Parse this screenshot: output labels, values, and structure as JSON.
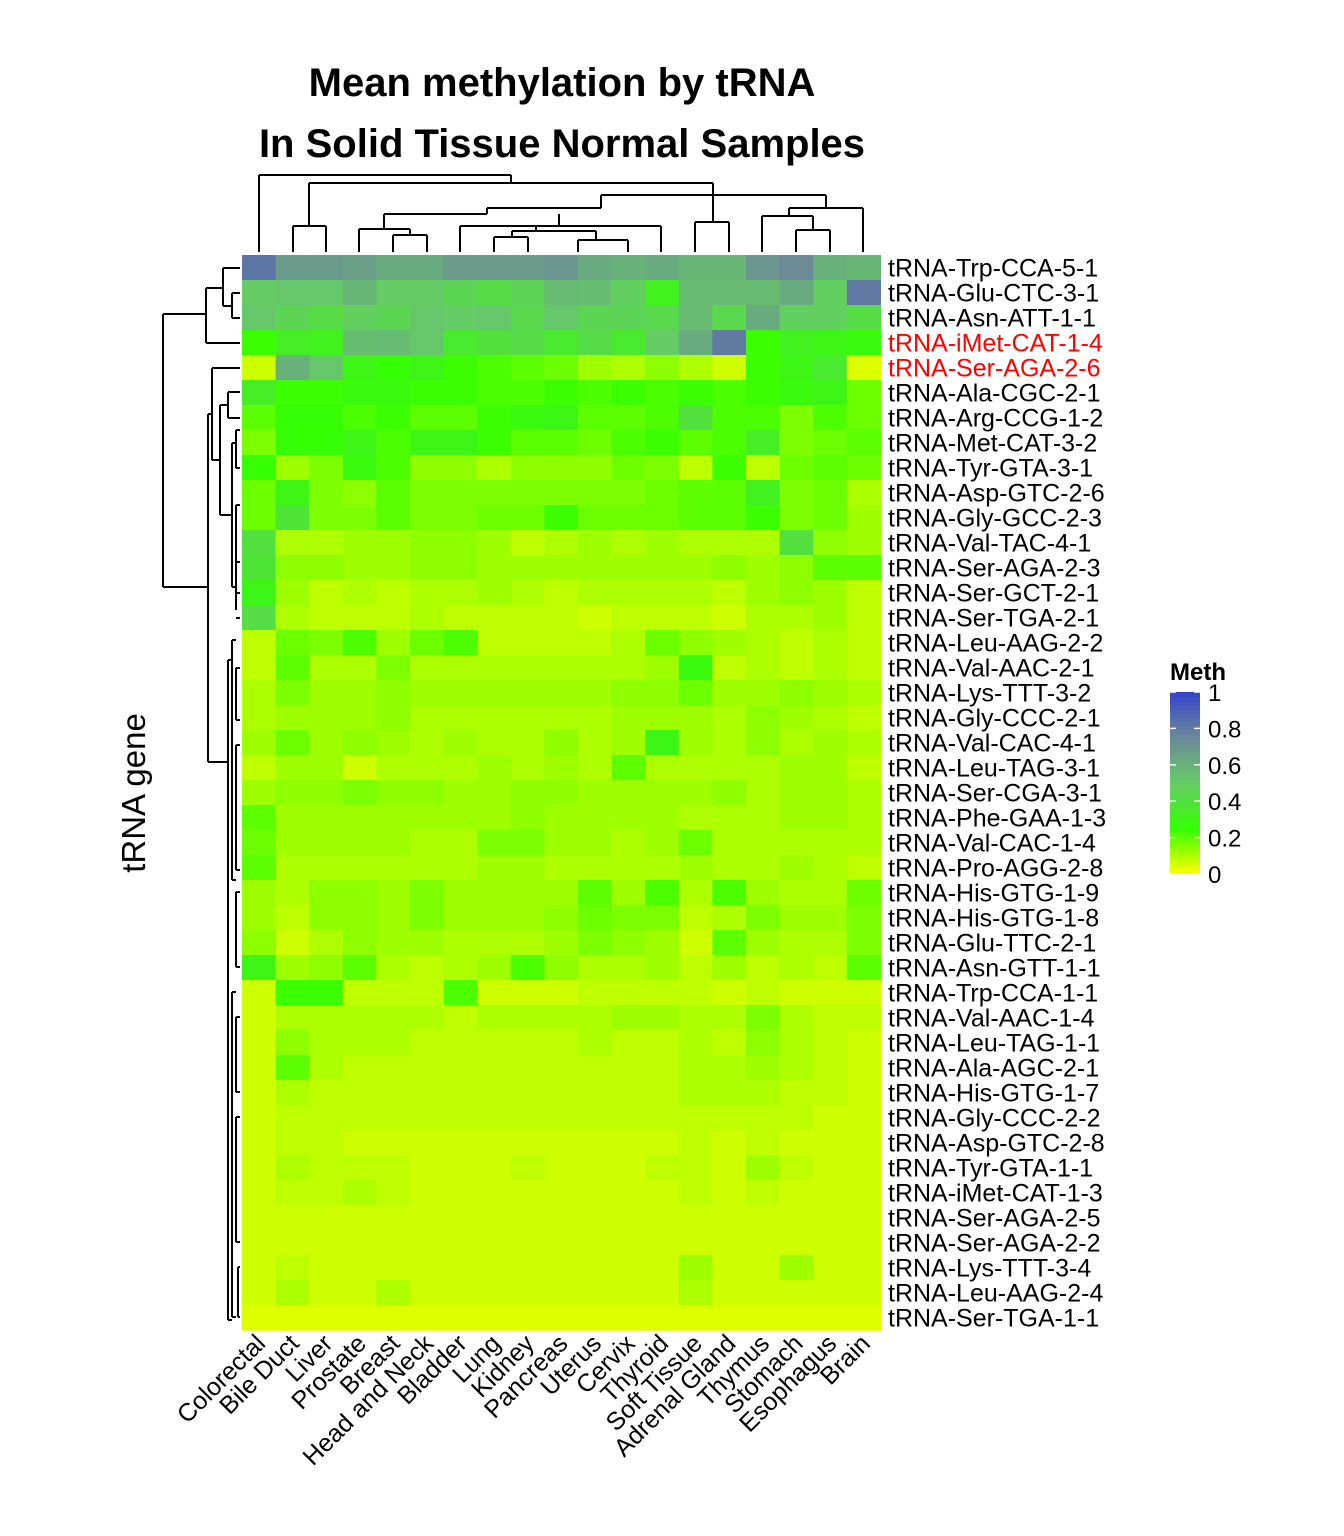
{
  "chart_data": {
    "type": "heatmap",
    "title": [
      "Mean methylation by tRNA",
      "In Solid Tissue Normal Samples"
    ],
    "ylabel": "tRNA gene",
    "columns": [
      "Colorectal",
      "Bile Duct",
      "Liver",
      "Prostate",
      "Breast",
      "Head and Neck",
      "Bladder",
      "Lung",
      "Kidney",
      "Pancreas",
      "Uterus",
      "Cervix",
      "Thyroid",
      "Soft Tissue",
      "Adrenal Gland",
      "Thymus",
      "Stomach",
      "Esophagus",
      "Brain"
    ],
    "rows": [
      "tRNA-Trp-CCA-5-1",
      "tRNA-Glu-CTC-3-1",
      "tRNA-Asn-ATT-1-1",
      "tRNA-iMet-CAT-1-4",
      "tRNA-Ser-AGA-2-6",
      "tRNA-Ala-CGC-2-1",
      "tRNA-Arg-CCG-1-2",
      "tRNA-Met-CAT-3-2",
      "tRNA-Tyr-GTA-3-1",
      "tRNA-Asp-GTC-2-6",
      "tRNA-Gly-GCC-2-3",
      "tRNA-Val-TAC-4-1",
      "tRNA-Ser-AGA-2-3",
      "tRNA-Ser-GCT-2-1",
      "tRNA-Ser-TGA-2-1",
      "tRNA-Leu-AAG-2-2",
      "tRNA-Val-AAC-2-1",
      "tRNA-Lys-TTT-3-2",
      "tRNA-Gly-CCC-2-1",
      "tRNA-Val-CAC-4-1",
      "tRNA-Leu-TAG-3-1",
      "tRNA-Ser-CGA-3-1",
      "tRNA-Phe-GAA-1-3",
      "tRNA-Val-CAC-1-4",
      "tRNA-Pro-AGG-2-8",
      "tRNA-His-GTG-1-9",
      "tRNA-His-GTG-1-8",
      "tRNA-Glu-TTC-2-1",
      "tRNA-Asn-GTT-1-1",
      "tRNA-Trp-CCA-1-1",
      "tRNA-Val-AAC-1-4",
      "tRNA-Leu-TAG-1-1",
      "tRNA-Ala-AGC-2-1",
      "tRNA-His-GTG-1-7",
      "tRNA-Gly-CCC-2-2",
      "tRNA-Asp-GTC-2-8",
      "tRNA-Tyr-GTA-1-1",
      "tRNA-iMet-CAT-1-3",
      "tRNA-Ser-AGA-2-5",
      "tRNA-Ser-AGA-2-2",
      "tRNA-Lys-TTT-3-4",
      "tRNA-Leu-AAG-2-4",
      "tRNA-Ser-TGA-1-1"
    ],
    "highlighted_rows": [
      "tRNA-iMet-CAT-1-4",
      "tRNA-Ser-AGA-2-6"
    ],
    "highlight_color": "#ff0000",
    "values": [
      [
        0.82,
        0.68,
        0.68,
        0.66,
        0.62,
        0.62,
        0.68,
        0.68,
        0.68,
        0.7,
        0.62,
        0.6,
        0.62,
        0.58,
        0.58,
        0.7,
        0.74,
        0.6,
        0.58
      ],
      [
        0.5,
        0.52,
        0.52,
        0.58,
        0.5,
        0.5,
        0.45,
        0.42,
        0.46,
        0.56,
        0.55,
        0.48,
        0.32,
        0.56,
        0.56,
        0.56,
        0.62,
        0.48,
        0.8
      ],
      [
        0.52,
        0.45,
        0.42,
        0.48,
        0.45,
        0.52,
        0.5,
        0.52,
        0.44,
        0.52,
        0.45,
        0.46,
        0.44,
        0.56,
        0.44,
        0.62,
        0.48,
        0.48,
        0.42
      ],
      [
        0.24,
        0.34,
        0.32,
        0.55,
        0.56,
        0.52,
        0.36,
        0.4,
        0.42,
        0.36,
        0.42,
        0.36,
        0.5,
        0.62,
        0.8,
        0.24,
        0.32,
        0.3,
        0.28
      ],
      [
        0.06,
        0.6,
        0.52,
        0.3,
        0.26,
        0.3,
        0.24,
        0.22,
        0.2,
        0.18,
        0.12,
        0.1,
        0.14,
        0.1,
        0.06,
        0.24,
        0.3,
        0.36,
        0.04
      ],
      [
        0.34,
        0.24,
        0.24,
        0.28,
        0.28,
        0.24,
        0.24,
        0.22,
        0.22,
        0.24,
        0.22,
        0.24,
        0.22,
        0.24,
        0.22,
        0.24,
        0.28,
        0.3,
        0.18
      ],
      [
        0.2,
        0.26,
        0.26,
        0.22,
        0.24,
        0.2,
        0.2,
        0.24,
        0.28,
        0.3,
        0.2,
        0.2,
        0.22,
        0.4,
        0.22,
        0.22,
        0.16,
        0.22,
        0.18
      ],
      [
        0.16,
        0.26,
        0.26,
        0.3,
        0.22,
        0.3,
        0.3,
        0.24,
        0.2,
        0.2,
        0.18,
        0.22,
        0.24,
        0.2,
        0.22,
        0.34,
        0.16,
        0.18,
        0.2
      ],
      [
        0.26,
        0.12,
        0.16,
        0.28,
        0.22,
        0.14,
        0.14,
        0.1,
        0.14,
        0.14,
        0.14,
        0.18,
        0.16,
        0.08,
        0.24,
        0.08,
        0.18,
        0.2,
        0.18
      ],
      [
        0.18,
        0.3,
        0.16,
        0.14,
        0.2,
        0.16,
        0.16,
        0.16,
        0.16,
        0.16,
        0.16,
        0.16,
        0.18,
        0.2,
        0.2,
        0.32,
        0.16,
        0.18,
        0.1
      ],
      [
        0.18,
        0.38,
        0.16,
        0.16,
        0.2,
        0.16,
        0.16,
        0.18,
        0.18,
        0.24,
        0.18,
        0.18,
        0.18,
        0.2,
        0.2,
        0.24,
        0.16,
        0.18,
        0.12
      ],
      [
        0.4,
        0.1,
        0.1,
        0.12,
        0.12,
        0.14,
        0.14,
        0.12,
        0.08,
        0.1,
        0.12,
        0.1,
        0.12,
        0.1,
        0.1,
        0.1,
        0.4,
        0.14,
        0.12
      ],
      [
        0.38,
        0.14,
        0.14,
        0.12,
        0.12,
        0.14,
        0.14,
        0.12,
        0.12,
        0.12,
        0.12,
        0.12,
        0.12,
        0.12,
        0.14,
        0.12,
        0.14,
        0.2,
        0.2
      ],
      [
        0.3,
        0.12,
        0.08,
        0.1,
        0.08,
        0.1,
        0.1,
        0.12,
        0.1,
        0.08,
        0.1,
        0.1,
        0.1,
        0.1,
        0.08,
        0.12,
        0.14,
        0.12,
        0.08
      ],
      [
        0.42,
        0.1,
        0.08,
        0.08,
        0.08,
        0.1,
        0.08,
        0.08,
        0.08,
        0.08,
        0.06,
        0.08,
        0.08,
        0.08,
        0.06,
        0.1,
        0.1,
        0.12,
        0.08
      ],
      [
        0.08,
        0.18,
        0.16,
        0.22,
        0.12,
        0.18,
        0.22,
        0.08,
        0.08,
        0.08,
        0.08,
        0.1,
        0.18,
        0.14,
        0.12,
        0.1,
        0.08,
        0.1,
        0.08
      ],
      [
        0.08,
        0.2,
        0.1,
        0.1,
        0.16,
        0.1,
        0.1,
        0.1,
        0.1,
        0.1,
        0.1,
        0.1,
        0.12,
        0.28,
        0.08,
        0.1,
        0.08,
        0.1,
        0.08
      ],
      [
        0.1,
        0.16,
        0.12,
        0.12,
        0.14,
        0.12,
        0.12,
        0.12,
        0.12,
        0.12,
        0.12,
        0.14,
        0.14,
        0.18,
        0.12,
        0.12,
        0.14,
        0.12,
        0.1
      ],
      [
        0.1,
        0.12,
        0.12,
        0.12,
        0.14,
        0.1,
        0.1,
        0.1,
        0.1,
        0.1,
        0.1,
        0.12,
        0.12,
        0.12,
        0.1,
        0.14,
        0.12,
        0.1,
        0.08
      ],
      [
        0.12,
        0.18,
        0.12,
        0.14,
        0.12,
        0.1,
        0.12,
        0.1,
        0.1,
        0.14,
        0.1,
        0.12,
        0.3,
        0.12,
        0.1,
        0.14,
        0.1,
        0.12,
        0.1
      ],
      [
        0.08,
        0.12,
        0.12,
        0.06,
        0.1,
        0.1,
        0.1,
        0.12,
        0.1,
        0.12,
        0.1,
        0.2,
        0.1,
        0.1,
        0.1,
        0.1,
        0.12,
        0.12,
        0.08
      ],
      [
        0.12,
        0.14,
        0.14,
        0.16,
        0.14,
        0.14,
        0.12,
        0.12,
        0.14,
        0.14,
        0.12,
        0.12,
        0.12,
        0.12,
        0.14,
        0.1,
        0.12,
        0.12,
        0.1
      ],
      [
        0.2,
        0.12,
        0.12,
        0.12,
        0.12,
        0.12,
        0.12,
        0.12,
        0.14,
        0.12,
        0.12,
        0.12,
        0.12,
        0.1,
        0.1,
        0.1,
        0.12,
        0.12,
        0.1
      ],
      [
        0.18,
        0.12,
        0.12,
        0.12,
        0.12,
        0.1,
        0.1,
        0.16,
        0.16,
        0.12,
        0.12,
        0.1,
        0.12,
        0.18,
        0.1,
        0.1,
        0.1,
        0.1,
        0.1
      ],
      [
        0.2,
        0.1,
        0.1,
        0.1,
        0.1,
        0.1,
        0.1,
        0.12,
        0.12,
        0.1,
        0.1,
        0.1,
        0.1,
        0.12,
        0.1,
        0.1,
        0.12,
        0.1,
        0.08
      ],
      [
        0.12,
        0.1,
        0.14,
        0.14,
        0.12,
        0.16,
        0.12,
        0.12,
        0.12,
        0.12,
        0.2,
        0.12,
        0.22,
        0.1,
        0.22,
        0.12,
        0.1,
        0.1,
        0.18
      ],
      [
        0.12,
        0.08,
        0.14,
        0.14,
        0.12,
        0.16,
        0.12,
        0.12,
        0.12,
        0.14,
        0.18,
        0.16,
        0.16,
        0.08,
        0.1,
        0.16,
        0.12,
        0.12,
        0.16
      ],
      [
        0.14,
        0.06,
        0.1,
        0.14,
        0.12,
        0.12,
        0.1,
        0.1,
        0.1,
        0.12,
        0.16,
        0.14,
        0.12,
        0.06,
        0.2,
        0.12,
        0.1,
        0.1,
        0.16
      ],
      [
        0.3,
        0.12,
        0.14,
        0.2,
        0.1,
        0.08,
        0.1,
        0.12,
        0.22,
        0.14,
        0.1,
        0.1,
        0.12,
        0.08,
        0.12,
        0.08,
        0.1,
        0.08,
        0.2
      ],
      [
        0.06,
        0.24,
        0.24,
        0.08,
        0.08,
        0.08,
        0.22,
        0.06,
        0.06,
        0.06,
        0.08,
        0.08,
        0.08,
        0.08,
        0.06,
        0.08,
        0.06,
        0.06,
        0.06
      ],
      [
        0.06,
        0.1,
        0.1,
        0.1,
        0.1,
        0.1,
        0.08,
        0.1,
        0.1,
        0.1,
        0.1,
        0.12,
        0.12,
        0.1,
        0.1,
        0.16,
        0.1,
        0.08,
        0.08
      ],
      [
        0.06,
        0.14,
        0.1,
        0.1,
        0.1,
        0.08,
        0.08,
        0.08,
        0.08,
        0.08,
        0.1,
        0.08,
        0.08,
        0.1,
        0.08,
        0.14,
        0.1,
        0.08,
        0.06
      ],
      [
        0.06,
        0.2,
        0.1,
        0.08,
        0.08,
        0.08,
        0.08,
        0.08,
        0.08,
        0.08,
        0.08,
        0.08,
        0.08,
        0.1,
        0.1,
        0.12,
        0.1,
        0.08,
        0.06
      ],
      [
        0.06,
        0.1,
        0.08,
        0.08,
        0.08,
        0.08,
        0.08,
        0.08,
        0.08,
        0.08,
        0.08,
        0.08,
        0.08,
        0.1,
        0.1,
        0.1,
        0.08,
        0.08,
        0.06
      ],
      [
        0.06,
        0.08,
        0.08,
        0.08,
        0.08,
        0.08,
        0.08,
        0.08,
        0.08,
        0.08,
        0.08,
        0.08,
        0.08,
        0.08,
        0.08,
        0.08,
        0.08,
        0.06,
        0.06
      ],
      [
        0.06,
        0.08,
        0.08,
        0.06,
        0.06,
        0.06,
        0.06,
        0.06,
        0.06,
        0.06,
        0.06,
        0.06,
        0.06,
        0.08,
        0.06,
        0.08,
        0.06,
        0.06,
        0.06
      ],
      [
        0.06,
        0.1,
        0.08,
        0.08,
        0.08,
        0.06,
        0.06,
        0.06,
        0.08,
        0.06,
        0.06,
        0.06,
        0.08,
        0.08,
        0.06,
        0.12,
        0.08,
        0.06,
        0.06
      ],
      [
        0.06,
        0.08,
        0.08,
        0.1,
        0.08,
        0.06,
        0.06,
        0.06,
        0.06,
        0.06,
        0.06,
        0.06,
        0.06,
        0.08,
        0.06,
        0.08,
        0.06,
        0.06,
        0.06
      ],
      [
        0.06,
        0.06,
        0.06,
        0.06,
        0.06,
        0.06,
        0.06,
        0.06,
        0.06,
        0.06,
        0.06,
        0.06,
        0.06,
        0.06,
        0.06,
        0.06,
        0.06,
        0.06,
        0.06
      ],
      [
        0.06,
        0.06,
        0.06,
        0.06,
        0.06,
        0.06,
        0.06,
        0.06,
        0.06,
        0.06,
        0.06,
        0.06,
        0.06,
        0.06,
        0.06,
        0.06,
        0.06,
        0.06,
        0.06
      ],
      [
        0.06,
        0.08,
        0.06,
        0.06,
        0.06,
        0.06,
        0.06,
        0.06,
        0.06,
        0.06,
        0.06,
        0.06,
        0.06,
        0.12,
        0.06,
        0.06,
        0.12,
        0.06,
        0.06
      ],
      [
        0.06,
        0.1,
        0.06,
        0.06,
        0.1,
        0.06,
        0.06,
        0.06,
        0.06,
        0.06,
        0.06,
        0.06,
        0.06,
        0.1,
        0.06,
        0.06,
        0.06,
        0.06,
        0.06
      ],
      [
        0.04,
        0.04,
        0.04,
        0.04,
        0.04,
        0.04,
        0.04,
        0.04,
        0.04,
        0.04,
        0.04,
        0.04,
        0.04,
        0.04,
        0.04,
        0.04,
        0.04,
        0.04,
        0.04
      ]
    ],
    "legend": {
      "title": "Meth",
      "ticks": [
        "1",
        "0.8",
        "0.6",
        "0.4",
        "0.2",
        "0"
      ],
      "range": [
        0,
        1
      ],
      "colors": [
        "#ffff00",
        "#33ff00",
        "#66cc66",
        "#6b8899",
        "#3344cc"
      ]
    }
  }
}
